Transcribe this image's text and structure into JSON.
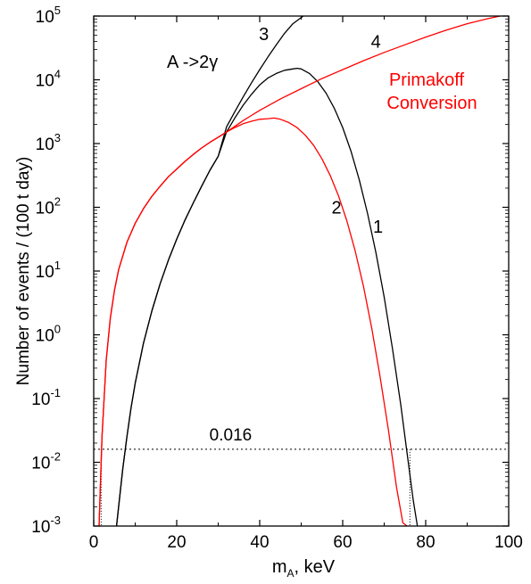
{
  "chart_data": {
    "type": "line",
    "xlabel_main": "m",
    "xlabel_sub": "A",
    "xlabel_rest": ", keV",
    "ylabel": "Number of events / (100 t day)",
    "xlim": [
      0,
      100
    ],
    "ylim_log10": [
      -3,
      5
    ],
    "yscale": "log",
    "x_ticks": [
      {
        "value": 0,
        "label": "0"
      },
      {
        "value": 20,
        "label": "20"
      },
      {
        "value": 40,
        "label": "40"
      },
      {
        "value": 60,
        "label": "60"
      },
      {
        "value": 80,
        "label": "80"
      },
      {
        "value": 100,
        "label": "100"
      }
    ],
    "y_ticks": [
      {
        "exp": -3,
        "base": "10",
        "power": "-3"
      },
      {
        "exp": -2,
        "base": "10",
        "power": "-2"
      },
      {
        "exp": -1,
        "base": "10",
        "power": "-1"
      },
      {
        "exp": 0,
        "base": "10",
        "power": "0"
      },
      {
        "exp": 1,
        "base": "10",
        "power": "1"
      },
      {
        "exp": 2,
        "base": "10",
        "power": "2"
      },
      {
        "exp": 3,
        "base": "10",
        "power": "3"
      },
      {
        "exp": 4,
        "base": "10",
        "power": "4"
      },
      {
        "exp": 5,
        "base": "10",
        "power": "5"
      }
    ],
    "threshold": {
      "value": 0.016,
      "label": "0.016"
    },
    "annotations": {
      "decay": "A ->2γ",
      "primakoff_line1": "Primakoff",
      "primakoff_line2": "Conversion"
    },
    "colors": {
      "black": "#000000",
      "red": "#ff0000"
    },
    "series": [
      {
        "name": "1",
        "color": "#000000",
        "label_at": [
          68.5,
          1.7
        ],
        "x": [
          5.5,
          6,
          7,
          8,
          9,
          10,
          12,
          14,
          16,
          18,
          20,
          22,
          24,
          26,
          28,
          30,
          32,
          34,
          36,
          38,
          40,
          42,
          44,
          46,
          48,
          49,
          50,
          52,
          54,
          56,
          58,
          60,
          62,
          64,
          66,
          68,
          70,
          72,
          74,
          76,
          77,
          78
        ],
        "y_log10": [
          -3.0,
          -2.7,
          -2.1,
          -1.6,
          -1.15,
          -0.76,
          -0.13,
          0.37,
          0.8,
          1.17,
          1.5,
          1.8,
          2.07,
          2.33,
          2.58,
          2.8,
          3.18,
          3.4,
          3.6,
          3.77,
          3.92,
          4.03,
          4.1,
          4.15,
          4.17,
          4.18,
          4.17,
          4.1,
          3.97,
          3.79,
          3.55,
          3.25,
          2.88,
          2.43,
          1.9,
          1.29,
          0.59,
          -0.22,
          -1.1,
          -2.1,
          -2.6,
          -3.0
        ]
      },
      {
        "name": "2",
        "color": "#ff0000",
        "label_at": [
          58.5,
          2.0
        ],
        "x": [
          1.3,
          1.6,
          2,
          3,
          4,
          5,
          6,
          8,
          10,
          12,
          14,
          16,
          18,
          20,
          22,
          24,
          26,
          28,
          30,
          32,
          34,
          36,
          38,
          40,
          42,
          43.5,
          45,
          47,
          49,
          51,
          53,
          55,
          57,
          59,
          61,
          63,
          65,
          67,
          69,
          71,
          73,
          74.5,
          75.5
        ],
        "y_log10": [
          -3.0,
          -2.4,
          -1.6,
          -0.4,
          0.26,
          0.7,
          1.02,
          1.45,
          1.75,
          1.98,
          2.17,
          2.33,
          2.48,
          2.6,
          2.72,
          2.83,
          2.93,
          3.02,
          3.1,
          3.18,
          3.25,
          3.31,
          3.35,
          3.38,
          3.39,
          3.4,
          3.38,
          3.33,
          3.25,
          3.13,
          2.97,
          2.76,
          2.5,
          2.18,
          1.79,
          1.32,
          0.76,
          0.1,
          -0.65,
          -1.48,
          -2.4,
          -2.95,
          -3.0
        ]
      },
      {
        "name": "3",
        "color": "#000000",
        "label_at": [
          41,
          4.72
        ],
        "x": [
          5.5,
          6,
          7,
          8,
          9,
          10,
          12,
          14,
          16,
          18,
          20,
          22,
          24,
          26,
          28,
          30,
          32,
          34,
          36,
          38,
          40,
          42,
          44,
          46,
          48,
          50.5
        ],
        "y_log10": [
          -3.0,
          -2.7,
          -2.1,
          -1.6,
          -1.15,
          -0.76,
          -0.13,
          0.37,
          0.8,
          1.17,
          1.5,
          1.8,
          2.07,
          2.33,
          2.58,
          2.8,
          3.26,
          3.5,
          3.73,
          3.95,
          4.16,
          4.36,
          4.55,
          4.73,
          4.88,
          5.0
        ]
      },
      {
        "name": "4",
        "color": "#ff0000",
        "label_at": [
          68,
          4.6
        ],
        "x": [
          1.3,
          1.6,
          2,
          3,
          4,
          5,
          6,
          8,
          10,
          12,
          14,
          16,
          18,
          20,
          22,
          24,
          26,
          28,
          30,
          32,
          34,
          36,
          38,
          40,
          45,
          50,
          55,
          60,
          65,
          70,
          75,
          80,
          85,
          90,
          95,
          100
        ],
        "y_log10": [
          -3.0,
          -2.4,
          -1.6,
          -0.4,
          0.26,
          0.7,
          1.02,
          1.45,
          1.75,
          1.98,
          2.17,
          2.33,
          2.48,
          2.6,
          2.72,
          2.83,
          2.93,
          3.02,
          3.1,
          3.18,
          3.27,
          3.36,
          3.44,
          3.52,
          3.7,
          3.86,
          4.02,
          4.16,
          4.3,
          4.43,
          4.55,
          4.67,
          4.78,
          4.88,
          4.96,
          5.03
        ]
      }
    ]
  }
}
